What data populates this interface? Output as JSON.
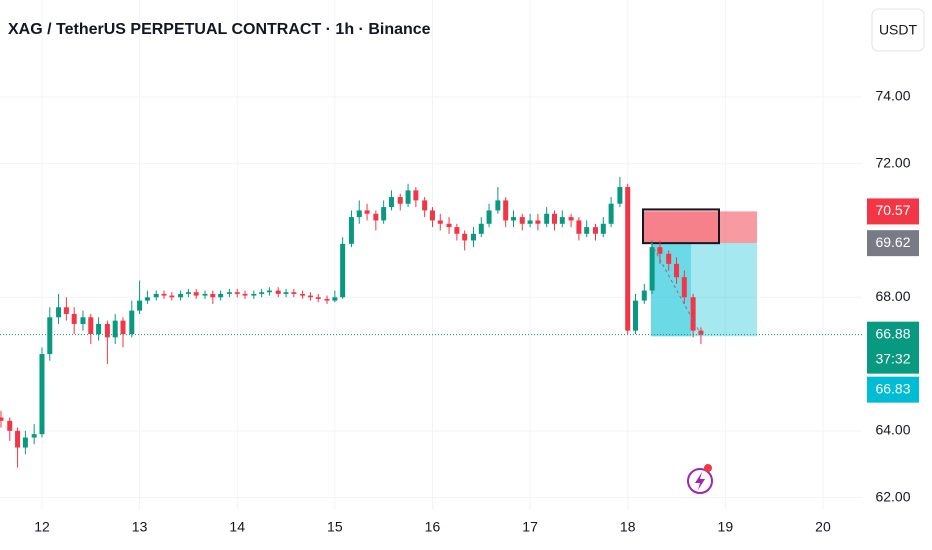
{
  "chart_data": {
    "type": "candlestick",
    "title": "XAG / TetherUS PERPETUAL CONTRACT · 1h · Binance",
    "currency_button": "USDT",
    "up_color": "#089981",
    "down_color": "#f23645",
    "grid": true,
    "xlim": [
      11.57,
      20.4
    ],
    "xticks": [
      12,
      13,
      14,
      15,
      16,
      17,
      18,
      19,
      20
    ],
    "ylim": [
      61.63,
      76.9
    ],
    "yticks": [
      {
        "value": 62,
        "label": "62.00"
      },
      {
        "value": 64,
        "label": "64.00"
      },
      {
        "value": 68,
        "label": "68.00"
      },
      {
        "value": 72,
        "label": "72.00"
      },
      {
        "value": 74,
        "label": "74.00"
      }
    ],
    "x": [
      11.58,
      11.67,
      11.75,
      11.83,
      11.92,
      12.0,
      12.08,
      12.17,
      12.25,
      12.33,
      12.42,
      12.5,
      12.58,
      12.67,
      12.75,
      12.83,
      12.92,
      13.0,
      13.08,
      13.17,
      13.25,
      13.33,
      13.42,
      13.5,
      13.58,
      13.67,
      13.75,
      13.83,
      13.92,
      14.0,
      14.08,
      14.17,
      14.25,
      14.33,
      14.42,
      14.5,
      14.58,
      14.67,
      14.75,
      14.83,
      14.92,
      15.0,
      15.08,
      15.17,
      15.25,
      15.33,
      15.42,
      15.5,
      15.58,
      15.67,
      15.75,
      15.83,
      15.92,
      16.0,
      16.08,
      16.17,
      16.25,
      16.33,
      16.42,
      16.5,
      16.58,
      16.67,
      16.75,
      16.83,
      16.92,
      17.0,
      17.08,
      17.17,
      17.25,
      17.33,
      17.42,
      17.5,
      17.58,
      17.67,
      17.75,
      17.83,
      17.92,
      18.0,
      18.08,
      18.17,
      18.25,
      18.33,
      18.42,
      18.5,
      18.58,
      18.67,
      18.75
    ],
    "open": [
      64.4,
      64.3,
      64.0,
      63.5,
      63.8,
      63.9,
      66.3,
      67.4,
      67.7,
      67.5,
      67.2,
      67.4,
      66.9,
      67.2,
      66.8,
      67.3,
      66.9,
      67.6,
      67.9,
      68.0,
      68.1,
      68.05,
      68.0,
      68.1,
      68.15,
      68.05,
      68.1,
      68.0,
      68.1,
      68.15,
      68.1,
      68.05,
      68.1,
      68.15,
      68.2,
      68.1,
      68.15,
      68.1,
      68.05,
      68.0,
      67.95,
      67.9,
      68.0,
      69.6,
      70.4,
      70.6,
      70.5,
      70.3,
      70.7,
      71.0,
      70.8,
      71.2,
      70.9,
      70.6,
      70.3,
      70.2,
      70.1,
      69.9,
      69.7,
      69.9,
      70.2,
      70.6,
      70.9,
      70.3,
      70.4,
      70.2,
      70.3,
      70.2,
      70.5,
      70.2,
      70.4,
      70.3,
      69.9,
      70.1,
      69.9,
      70.2,
      70.8,
      71.3,
      67.0,
      67.9,
      68.2,
      69.5,
      69.3,
      69.0,
      68.6,
      68.0,
      67.0
    ],
    "high": [
      64.6,
      64.4,
      64.1,
      64.0,
      64.2,
      66.5,
      67.7,
      68.1,
      68.0,
      67.7,
      67.6,
      67.5,
      67.4,
      67.3,
      67.5,
      67.4,
      67.9,
      68.5,
      68.2,
      68.2,
      68.2,
      68.15,
      68.2,
      68.25,
      68.25,
      68.2,
      68.2,
      68.2,
      68.25,
      68.25,
      68.2,
      68.2,
      68.25,
      68.3,
      68.3,
      68.25,
      68.25,
      68.2,
      68.15,
      68.1,
      68.05,
      68.2,
      69.8,
      70.6,
      70.9,
      70.8,
      70.6,
      70.9,
      71.2,
      71.1,
      71.4,
      71.3,
      71.0,
      70.7,
      70.5,
      70.4,
      70.2,
      70.0,
      70.1,
      70.4,
      70.8,
      71.3,
      71.0,
      70.6,
      70.5,
      70.5,
      70.5,
      70.7,
      70.6,
      70.6,
      70.5,
      70.4,
      70.3,
      70.2,
      70.4,
      71.0,
      71.6,
      71.4,
      68.1,
      68.4,
      69.7,
      69.7,
      69.4,
      69.2,
      68.8,
      68.1,
      67.1
    ],
    "low": [
      64.1,
      63.7,
      62.9,
      63.3,
      63.6,
      63.8,
      66.1,
      67.2,
      67.3,
      66.9,
      67.0,
      66.6,
      66.7,
      66.0,
      66.6,
      66.5,
      66.8,
      67.5,
      67.8,
      67.9,
      67.95,
      67.9,
      67.9,
      68.0,
      67.95,
      67.95,
      67.8,
      67.9,
      68.0,
      68.0,
      67.95,
      67.95,
      68.0,
      68.05,
      68.0,
      68.0,
      68.0,
      67.95,
      67.9,
      67.85,
      67.8,
      67.85,
      67.95,
      69.5,
      70.2,
      70.3,
      70.0,
      70.2,
      70.6,
      70.6,
      70.7,
      70.7,
      70.4,
      70.1,
      70.0,
      69.9,
      69.7,
      69.4,
      69.5,
      69.8,
      70.1,
      70.5,
      70.1,
      70.1,
      70.0,
      70.1,
      70.0,
      70.1,
      70.0,
      70.1,
      70.1,
      69.7,
      69.8,
      69.7,
      69.8,
      70.1,
      70.7,
      66.9,
      66.9,
      67.8,
      68.1,
      69.0,
      68.8,
      68.4,
      67.8,
      66.8,
      66.6
    ],
    "close": [
      64.3,
      64.0,
      63.5,
      63.8,
      63.9,
      66.3,
      67.4,
      67.7,
      67.5,
      67.2,
      67.4,
      66.9,
      67.2,
      66.8,
      67.3,
      66.9,
      67.6,
      67.9,
      68.0,
      68.1,
      68.05,
      68.0,
      68.1,
      68.15,
      68.05,
      68.1,
      68.0,
      68.1,
      68.15,
      68.1,
      68.05,
      68.1,
      68.15,
      68.2,
      68.1,
      68.15,
      68.1,
      68.05,
      68.0,
      67.95,
      67.9,
      68.0,
      69.6,
      70.4,
      70.6,
      70.5,
      70.3,
      70.7,
      71.0,
      70.8,
      71.2,
      70.9,
      70.6,
      70.3,
      70.2,
      70.1,
      69.9,
      69.7,
      69.9,
      70.2,
      70.6,
      70.9,
      70.3,
      70.4,
      70.2,
      70.3,
      70.2,
      70.5,
      70.2,
      70.4,
      70.3,
      69.9,
      70.1,
      69.9,
      70.2,
      70.8,
      71.3,
      67.0,
      67.9,
      68.2,
      69.5,
      69.3,
      69.0,
      68.6,
      68.0,
      67.0,
      66.88
    ],
    "last_price": 66.88,
    "countdown": "37:32",
    "position": {
      "stop": 70.57,
      "entry": 69.62,
      "target": 66.83
    }
  }
}
